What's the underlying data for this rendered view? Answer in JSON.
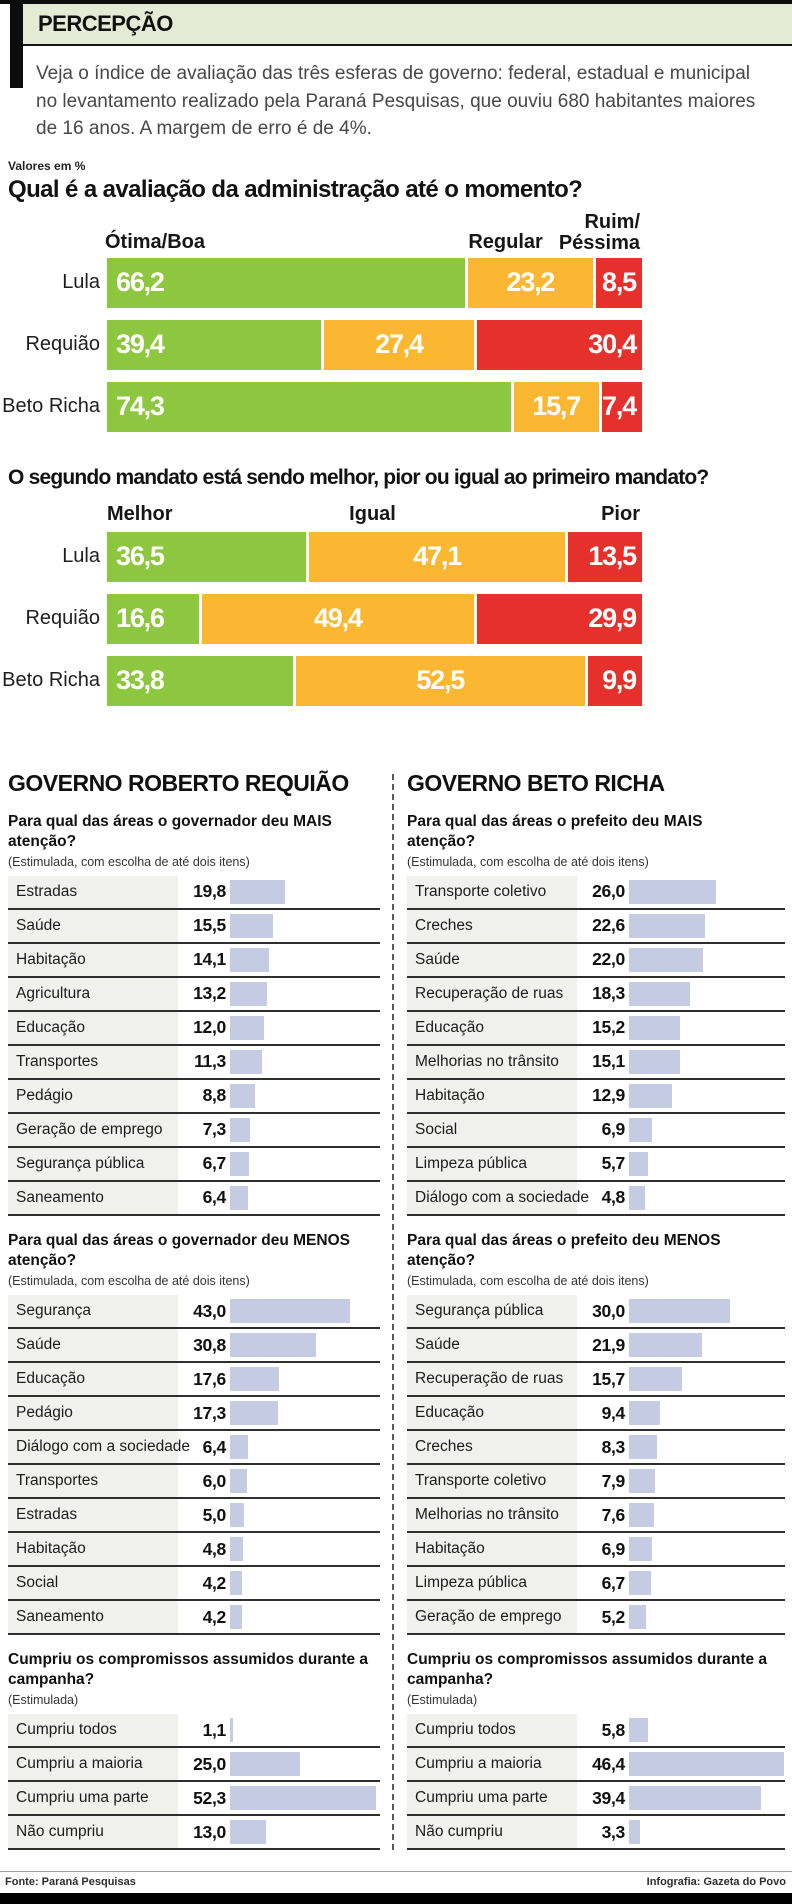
{
  "header": {
    "kicker": "PERCEPÇÃO",
    "intro": "Veja o índice de avaliação das três esferas de governo: federal, estadual e municipal no levantamento realizado pela Paraná Pesquisas, que ouviu 680 habitantes maiores de 16 anos. A margem de erro é de 4%."
  },
  "values_note": "Valores em %",
  "colors": {
    "green": "#8dc63f",
    "yellow": "#fbb731",
    "red": "#e6302b",
    "list_bar": "#c6cbe4",
    "kicker_band": "#e4ebd5",
    "label_strip": "#f0f0ec"
  },
  "chart_data": [
    {
      "id": "avaliacao-administracao",
      "type": "bar",
      "stacked": true,
      "unit": "%",
      "title": "Qual é a avaliação da administração até o momento?",
      "categories": [
        "Lula",
        "Requião",
        "Beto Richa"
      ],
      "header_labels": [
        "Ótima/Boa",
        "Regular",
        "Ruim/\nPéssima"
      ],
      "series": [
        {
          "name": "Ótima/Boa",
          "color": "#8dc63f",
          "values": [
            66.2,
            39.4,
            74.3
          ]
        },
        {
          "name": "Regular",
          "color": "#fbb731",
          "values": [
            23.2,
            27.4,
            15.7
          ]
        },
        {
          "name": "Ruim/Péssima",
          "color": "#e6302b",
          "values": [
            8.5,
            30.4,
            7.4
          ]
        }
      ],
      "value_labels": "inside",
      "legend_position": "top"
    },
    {
      "id": "segundo-mandato",
      "type": "bar",
      "stacked": true,
      "unit": "%",
      "title": "O segundo mandato está sendo melhor, pior ou igual ao primeiro mandato?",
      "categories": [
        "Lula",
        "Requião",
        "Beto Richa"
      ],
      "header_labels": [
        "Melhor",
        "Igual",
        "Pior"
      ],
      "series": [
        {
          "name": "Melhor",
          "color": "#8dc63f",
          "values": [
            36.5,
            16.6,
            33.8
          ]
        },
        {
          "name": "Igual",
          "color": "#fbb731",
          "values": [
            47.1,
            49.4,
            52.5
          ]
        },
        {
          "name": "Pior",
          "color": "#e6302b",
          "values": [
            13.5,
            29.9,
            9.9
          ]
        }
      ],
      "value_labels": "inside",
      "legend_position": "top"
    },
    {
      "id": "requiao-mais-atencao",
      "type": "bar",
      "unit": "%",
      "title": "Para qual das áreas o governador deu MAIS atenção?",
      "note": "(Estimulada, com escolha de até dois itens)",
      "categories": [
        "Estradas",
        "Saúde",
        "Habitação",
        "Agricultura",
        "Educação",
        "Transportes",
        "Pedágio",
        "Geração de emprego",
        "Segurança pública",
        "Saneamento"
      ],
      "values": [
        19.8,
        15.5,
        14.1,
        13.2,
        12.0,
        11.3,
        8.8,
        7.3,
        6.7,
        6.4
      ],
      "bar_color": "#c6cbe4"
    },
    {
      "id": "requiao-menos-atencao",
      "type": "bar",
      "unit": "%",
      "title": "Para qual das áreas o governador deu MENOS atenção?",
      "note": "(Estimulada, com escolha de até dois itens)",
      "categories": [
        "Segurança",
        "Saúde",
        "Educação",
        "Pedágio",
        "Diálogo com a sociedade",
        "Transportes",
        "Estradas",
        "Habitação",
        "Social",
        "Saneamento"
      ],
      "values": [
        43.0,
        30.8,
        17.6,
        17.3,
        6.4,
        6.0,
        5.0,
        4.8,
        4.2,
        4.2
      ],
      "bar_color": "#c6cbe4"
    },
    {
      "id": "requiao-compromissos",
      "type": "bar",
      "unit": "%",
      "title": "Cumpriu os compromissos assumidos durante a campanha?",
      "note": "(Estimulada)",
      "categories": [
        "Cumpriu todos",
        "Cumpriu a maioria",
        "Cumpriu uma parte",
        "Não cumpriu"
      ],
      "values": [
        1.1,
        25.0,
        52.3,
        13.0
      ],
      "bar_color": "#c6cbe4"
    },
    {
      "id": "betoricha-mais-atencao",
      "type": "bar",
      "unit": "%",
      "title": "Para qual das áreas o prefeito deu MAIS atenção?",
      "note": "(Estimulada, com escolha de até dois itens)",
      "categories": [
        "Transporte coletivo",
        "Creches",
        "Saúde",
        "Recuperação de ruas",
        "Educação",
        "Melhorias no trânsito",
        "Habitação",
        "Social",
        "Limpeza pública",
        "Diálogo com a sociedade"
      ],
      "values": [
        26.0,
        22.6,
        22.0,
        18.3,
        15.2,
        15.1,
        12.9,
        6.9,
        5.7,
        4.8
      ],
      "bar_color": "#c6cbe4"
    },
    {
      "id": "betoricha-menos-atencao",
      "type": "bar",
      "unit": "%",
      "title": "Para qual das áreas o prefeito deu MENOS atenção?",
      "note": "(Estimulada, com escolha de até dois itens)",
      "categories": [
        "Segurança pública",
        "Saúde",
        "Recuperação de ruas",
        "Educação",
        "Creches",
        "Transporte coletivo",
        "Melhorias no trânsito",
        "Habitação",
        "Limpeza pública",
        "Geração de emprego"
      ],
      "values": [
        30.0,
        21.9,
        15.7,
        9.4,
        8.3,
        7.9,
        7.6,
        6.9,
        6.7,
        5.2
      ],
      "bar_color": "#c6cbe4"
    },
    {
      "id": "betoricha-compromissos",
      "type": "bar",
      "unit": "%",
      "title": "Cumpriu os compromissos assumidos durante a campanha?",
      "note": "(Estimulada)",
      "categories": [
        "Cumpriu todos",
        "Cumpriu a maioria",
        "Cumpriu uma parte",
        "Não cumpriu"
      ],
      "values": [
        5.8,
        46.4,
        39.4,
        3.3
      ],
      "bar_color": "#c6cbe4"
    }
  ],
  "panels": [
    {
      "title": "GOVERNO ROBERTO REQUIÃO"
    },
    {
      "title": "GOVERNO BETO RICHA"
    }
  ],
  "footer": {
    "source": "Fonte: Paraná Pesquisas",
    "credit": "Infografia: Gazeta do Povo"
  }
}
